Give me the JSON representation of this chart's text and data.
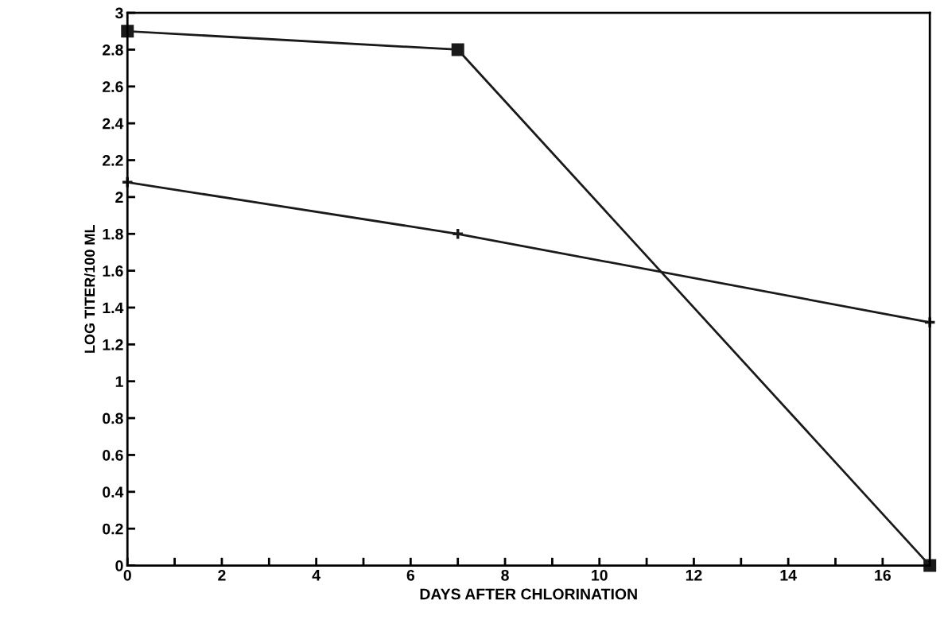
{
  "chart_data": {
    "type": "line",
    "xlabel": "DAYS AFTER CHLORINATION",
    "ylabel": "LOG TITER/100 ML",
    "xlim": [
      0,
      17
    ],
    "ylim": [
      0,
      3
    ],
    "xticks": [
      0,
      {
        "value": 1,
        "label": null
      },
      2,
      {
        "value": 3,
        "label": null
      },
      4,
      {
        "value": 5,
        "label": null
      },
      6,
      {
        "value": 7,
        "label": null
      },
      8,
      {
        "value": 9,
        "label": null
      },
      10,
      {
        "value": 11,
        "label": null
      },
      12,
      {
        "value": 13,
        "label": null
      },
      14,
      {
        "value": 15,
        "label": null
      },
      16
    ],
    "yticks": [
      0,
      0.2,
      0.4,
      0.6,
      0.8,
      1,
      1.2,
      1.4,
      1.6,
      1.8,
      2,
      2.2,
      2.4,
      2.6,
      2.8,
      3
    ],
    "grid": false,
    "legend": false,
    "series": [
      {
        "color": "#1a1a1a",
        "x": [
          0,
          7,
          17
        ],
        "values": [
          2.9,
          2.8,
          0
        ],
        "marker": "square"
      },
      {
        "color": "#1a1a1a",
        "x": [
          0,
          7,
          17
        ],
        "values": [
          2.08,
          1.8,
          1.32
        ],
        "marker": "cross"
      }
    ]
  }
}
